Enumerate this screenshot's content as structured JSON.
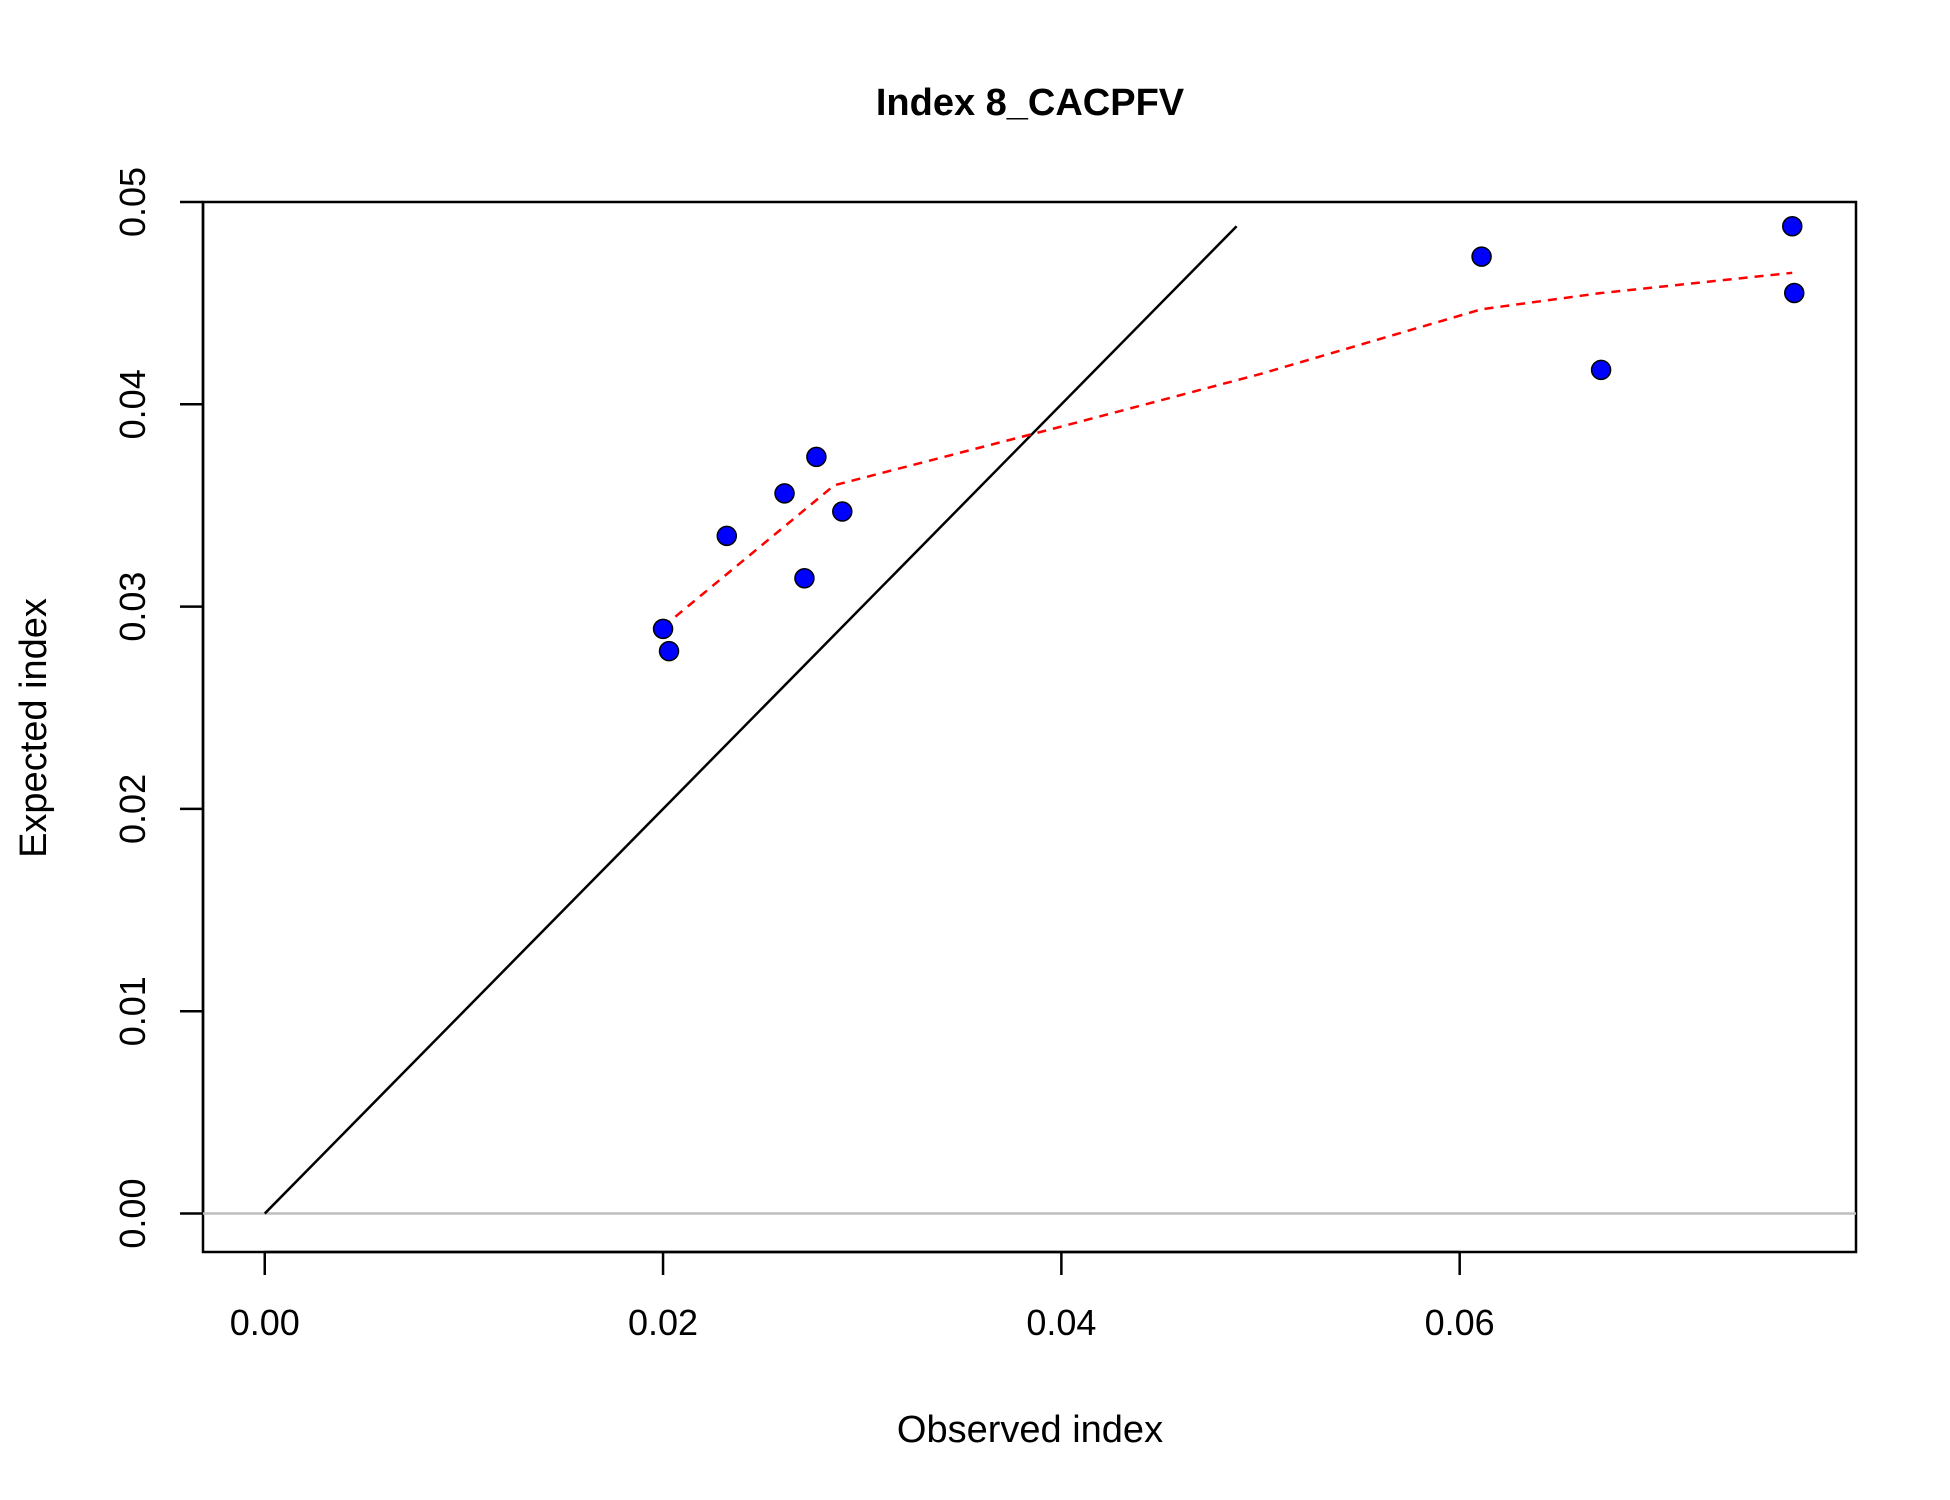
{
  "chart_data": {
    "type": "scatter",
    "title": "Index 8_CACPFV",
    "xlabel": "Observed index",
    "ylabel": "Expected index",
    "xlim": [
      -0.0031,
      0.0799
    ],
    "ylim": [
      -0.0019,
      0.05
    ],
    "x_ticks": [
      0.0,
      0.02,
      0.04,
      0.06
    ],
    "x_tick_labels": [
      "0.00",
      "0.02",
      "0.04",
      "0.06"
    ],
    "y_ticks": [
      0.0,
      0.01,
      0.02,
      0.03,
      0.04,
      0.05
    ],
    "y_tick_labels": [
      "0.00",
      "0.01",
      "0.02",
      "0.03",
      "0.04",
      "0.05"
    ],
    "grid": false,
    "legend": "none",
    "points": {
      "x": [
        0.02,
        0.0203,
        0.0232,
        0.0261,
        0.0271,
        0.0277,
        0.029,
        0.0611,
        0.0671,
        0.0767,
        0.0768
      ],
      "y": [
        0.0289,
        0.0278,
        0.0335,
        0.0356,
        0.0314,
        0.0374,
        0.0347,
        0.0473,
        0.0417,
        0.0488,
        0.0455
      ],
      "fill": "#0000ff",
      "edge": "#000000"
    },
    "smooth_line": {
      "x": [
        0.02,
        0.0286,
        0.04,
        0.05,
        0.0611,
        0.0671,
        0.0767
      ],
      "y": [
        0.029,
        0.036,
        0.0389,
        0.0415,
        0.0447,
        0.0455,
        0.0465
      ],
      "color": "#ff0000",
      "style": "dashed"
    },
    "identity_line": {
      "x": [
        0.0,
        0.0488
      ],
      "y": [
        0.0,
        0.0488
      ],
      "color": "#000000"
    },
    "zero_line": {
      "y": 0.0,
      "color": "#bebebe"
    }
  }
}
